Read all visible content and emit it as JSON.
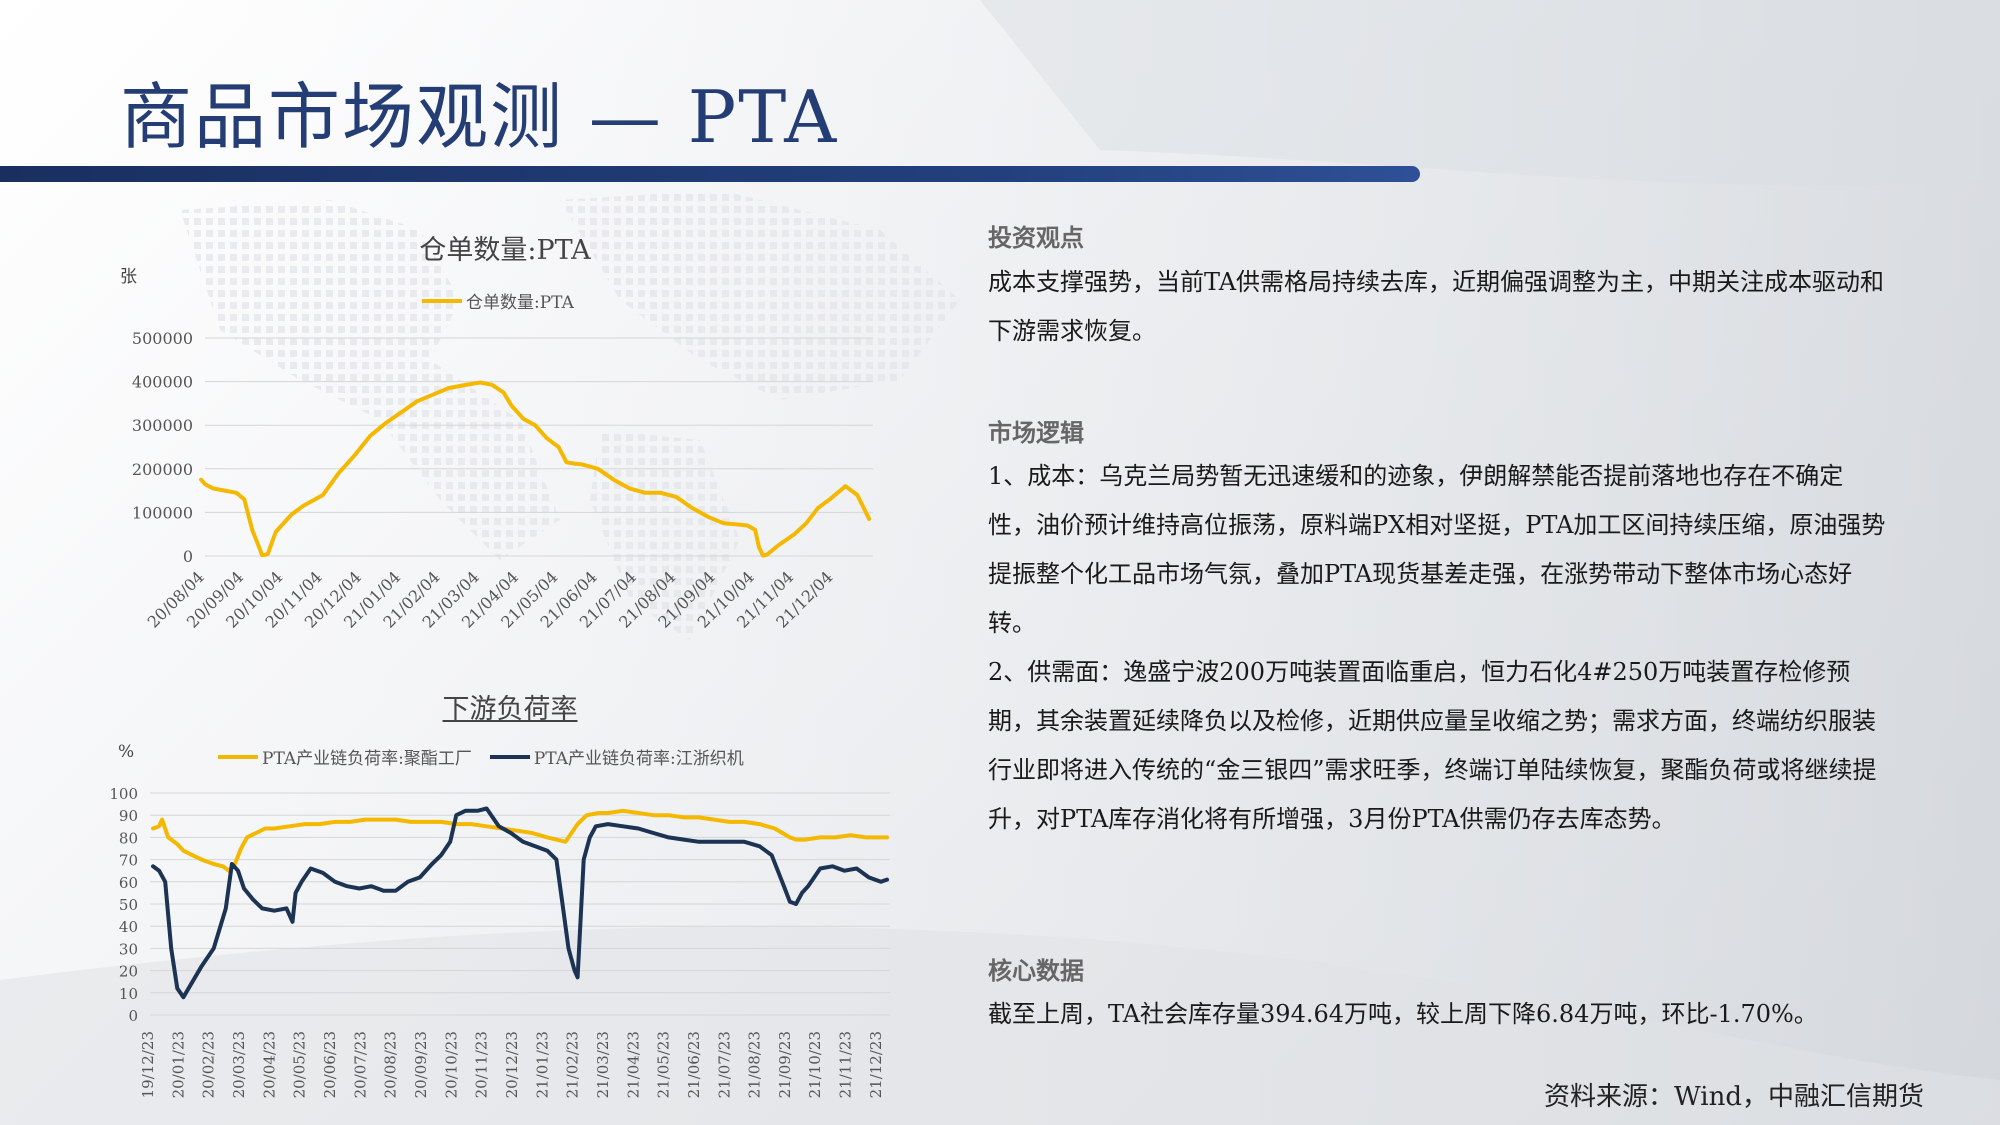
{
  "page": {
    "title": "商品市场观测 — PTA",
    "source": "资料来源：Wind，中融汇信期货"
  },
  "right_panel": {
    "sections": [
      {
        "heading": "投资观点",
        "paragraphs": [
          "成本支撑强势，当前TA供需格局持续去库，近期偏强调整为主，中期关注成本驱动和下游需求恢复。"
        ]
      },
      {
        "heading": "市场逻辑",
        "paragraphs": [
          "1、成本：乌克兰局势暂无迅速缓和的迹象，伊朗解禁能否提前落地也存在不确定性，油价预计维持高位振荡，原料端PX相对坚挺，PTA加工区间持续压缩，原油强势提振整个化工品市场气氛，叠加PTA现货基差走强，在涨势带动下整体市场心态好转。",
          "2、供需面：逸盛宁波200万吨装置面临重启，恒力石化4#250万吨装置存检修预期，其余装置延续降负以及检修，近期供应量呈收缩之势；需求方面，终端纺织服装行业即将进入传统的“金三银四”需求旺季，终端订单陆续恢复，聚酯负荷或将继续提升，对PTA库存消化将有所增强，3月份PTA供需仍存去库态势。"
        ]
      },
      {
        "heading": "核心数据",
        "paragraphs": [
          "截至上周，TA社会库存量394.64万吨，较上周下降6.84万吨，环比-1.70%。"
        ]
      }
    ]
  },
  "chart_data": [
    {
      "type": "line",
      "title": "仓单数量:PTA",
      "ylabel": "张",
      "ylim": [
        0,
        500000
      ],
      "yticks": [
        0,
        100000,
        200000,
        300000,
        400000,
        500000
      ],
      "grid": true,
      "legend_position": "top",
      "x_tick_labels": [
        "20/08/04",
        "20/09/04",
        "20/10/04",
        "20/11/04",
        "20/12/04",
        "21/01/04",
        "21/02/04",
        "21/03/04",
        "21/04/04",
        "21/05/04",
        "21/06/04",
        "21/07/04",
        "21/08/04",
        "21/09/04",
        "21/10/04",
        "21/11/04",
        "21/12/04"
      ],
      "x_range": [
        0,
        17
      ],
      "series": [
        {
          "name": "仓单数量:PTA",
          "color": "#f5b800",
          "x": [
            -0.1,
            0.0,
            0.2,
            0.5,
            0.8,
            1.0,
            1.2,
            1.4,
            1.45,
            1.55,
            1.6,
            1.8,
            2.2,
            2.5,
            3.0,
            3.4,
            3.8,
            4.2,
            4.6,
            5.0,
            5.4,
            5.8,
            6.2,
            6.6,
            7.0,
            7.3,
            7.6,
            7.8,
            8.1,
            8.4,
            8.7,
            9.0,
            9.2,
            9.4,
            9.6,
            10.0,
            10.4,
            10.8,
            11.2,
            11.6,
            12.0,
            12.4,
            12.8,
            13.2,
            13.6,
            13.8,
            14.0,
            14.1,
            14.2,
            14.3,
            14.6,
            15.0,
            15.3,
            15.6,
            15.9,
            16.3,
            16.6,
            16.9
          ],
          "y": [
            175000,
            165000,
            155000,
            150000,
            145000,
            130000,
            60000,
            15000,
            2000,
            3000,
            5000,
            55000,
            95000,
            115000,
            140000,
            190000,
            230000,
            275000,
            305000,
            330000,
            355000,
            370000,
            385000,
            392000,
            398000,
            393000,
            375000,
            345000,
            315000,
            300000,
            270000,
            250000,
            215000,
            212000,
            210000,
            200000,
            175000,
            155000,
            145000,
            145000,
            135000,
            110000,
            90000,
            75000,
            72000,
            70000,
            60000,
            20000,
            1000,
            3000,
            25000,
            50000,
            75000,
            110000,
            130000,
            160000,
            140000,
            85000
          ]
        }
      ]
    },
    {
      "type": "line",
      "title": "下游负荷率",
      "ylabel": "%",
      "ylim": [
        0,
        100
      ],
      "yticks": [
        0,
        10,
        20,
        30,
        40,
        50,
        60,
        70,
        80,
        90,
        100
      ],
      "grid": true,
      "legend_position": "top",
      "x_tick_labels": [
        "19/12/23",
        "20/01/23",
        "20/02/23",
        "20/03/23",
        "20/04/23",
        "20/05/23",
        "20/06/23",
        "20/07/23",
        "20/08/23",
        "20/09/23",
        "20/10/23",
        "20/11/23",
        "20/12/23",
        "21/01/23",
        "21/02/23",
        "21/03/23",
        "21/04/23",
        "21/05/23",
        "21/06/23",
        "21/07/23",
        "21/08/23",
        "21/09/23",
        "21/10/23",
        "21/11/23",
        "21/12/23"
      ],
      "x_range": [
        -0.1,
        24.3
      ],
      "series": [
        {
          "name": "PTA产业链负荷率:聚酯工厂",
          "color": "#f5b800",
          "x": [
            0.0,
            0.2,
            0.3,
            0.5,
            0.8,
            1.0,
            1.3,
            1.6,
            2.0,
            2.3,
            2.5,
            2.7,
            2.9,
            3.1,
            3.4,
            3.7,
            4.0,
            4.5,
            5.0,
            5.5,
            6.0,
            6.5,
            7.0,
            7.5,
            8.0,
            8.5,
            9.0,
            9.5,
            10.0,
            10.5,
            11.0,
            11.5,
            12.0,
            12.5,
            13.0,
            13.3,
            13.6,
            14.0,
            14.3,
            14.7,
            15.0,
            15.5,
            16.0,
            16.5,
            17.0,
            17.5,
            18.0,
            18.5,
            19.0,
            19.5,
            20.0,
            20.5,
            21.0,
            21.2,
            21.5,
            22.0,
            22.5,
            23.0,
            23.5,
            24.0,
            24.2
          ],
          "y": [
            84,
            85,
            88,
            80,
            77,
            74,
            72,
            70,
            68,
            67,
            65,
            68,
            75,
            80,
            82,
            84,
            84,
            85,
            86,
            86,
            87,
            87,
            88,
            88,
            88,
            87,
            87,
            87,
            86,
            86,
            85,
            84,
            83,
            82,
            80,
            79,
            78,
            86,
            90,
            91,
            91,
            92,
            91,
            90,
            90,
            89,
            89,
            88,
            87,
            87,
            86,
            84,
            80,
            79,
            79,
            80,
            80,
            81,
            80,
            80,
            80
          ]
        },
        {
          "name": "PTA产业链负荷率:江浙织机",
          "color": "#1c3353",
          "x": [
            0.0,
            0.2,
            0.4,
            0.6,
            0.8,
            1.0,
            1.3,
            1.6,
            2.0,
            2.4,
            2.6,
            2.8,
            3.0,
            3.3,
            3.6,
            4.0,
            4.4,
            4.6,
            4.7,
            4.9,
            5.2,
            5.6,
            6.0,
            6.4,
            6.8,
            7.2,
            7.6,
            8.0,
            8.4,
            8.8,
            9.2,
            9.5,
            9.8,
            10.0,
            10.3,
            10.7,
            11.0,
            11.4,
            11.8,
            12.2,
            12.6,
            13.0,
            13.3,
            13.5,
            13.7,
            13.9,
            14.0,
            14.2,
            14.4,
            14.6,
            15.0,
            15.5,
            16.0,
            16.5,
            17.0,
            17.5,
            18.0,
            18.5,
            19.0,
            19.5,
            20.0,
            20.4,
            20.8,
            21.0,
            21.2,
            21.4,
            21.6,
            22.0,
            22.4,
            22.8,
            23.2,
            23.6,
            24.0,
            24.2
          ],
          "y": [
            67,
            65,
            60,
            30,
            12,
            8,
            15,
            22,
            30,
            48,
            68,
            65,
            57,
            52,
            48,
            47,
            48,
            42,
            55,
            60,
            66,
            64,
            60,
            58,
            57,
            58,
            56,
            56,
            60,
            62,
            68,
            72,
            78,
            90,
            92,
            92,
            93,
            85,
            82,
            78,
            76,
            74,
            70,
            50,
            30,
            20,
            17,
            70,
            80,
            85,
            86,
            85,
            84,
            82,
            80,
            79,
            78,
            78,
            78,
            78,
            76,
            72,
            58,
            51,
            50,
            55,
            58,
            66,
            67,
            65,
            66,
            62,
            60,
            61
          ]
        }
      ]
    }
  ]
}
